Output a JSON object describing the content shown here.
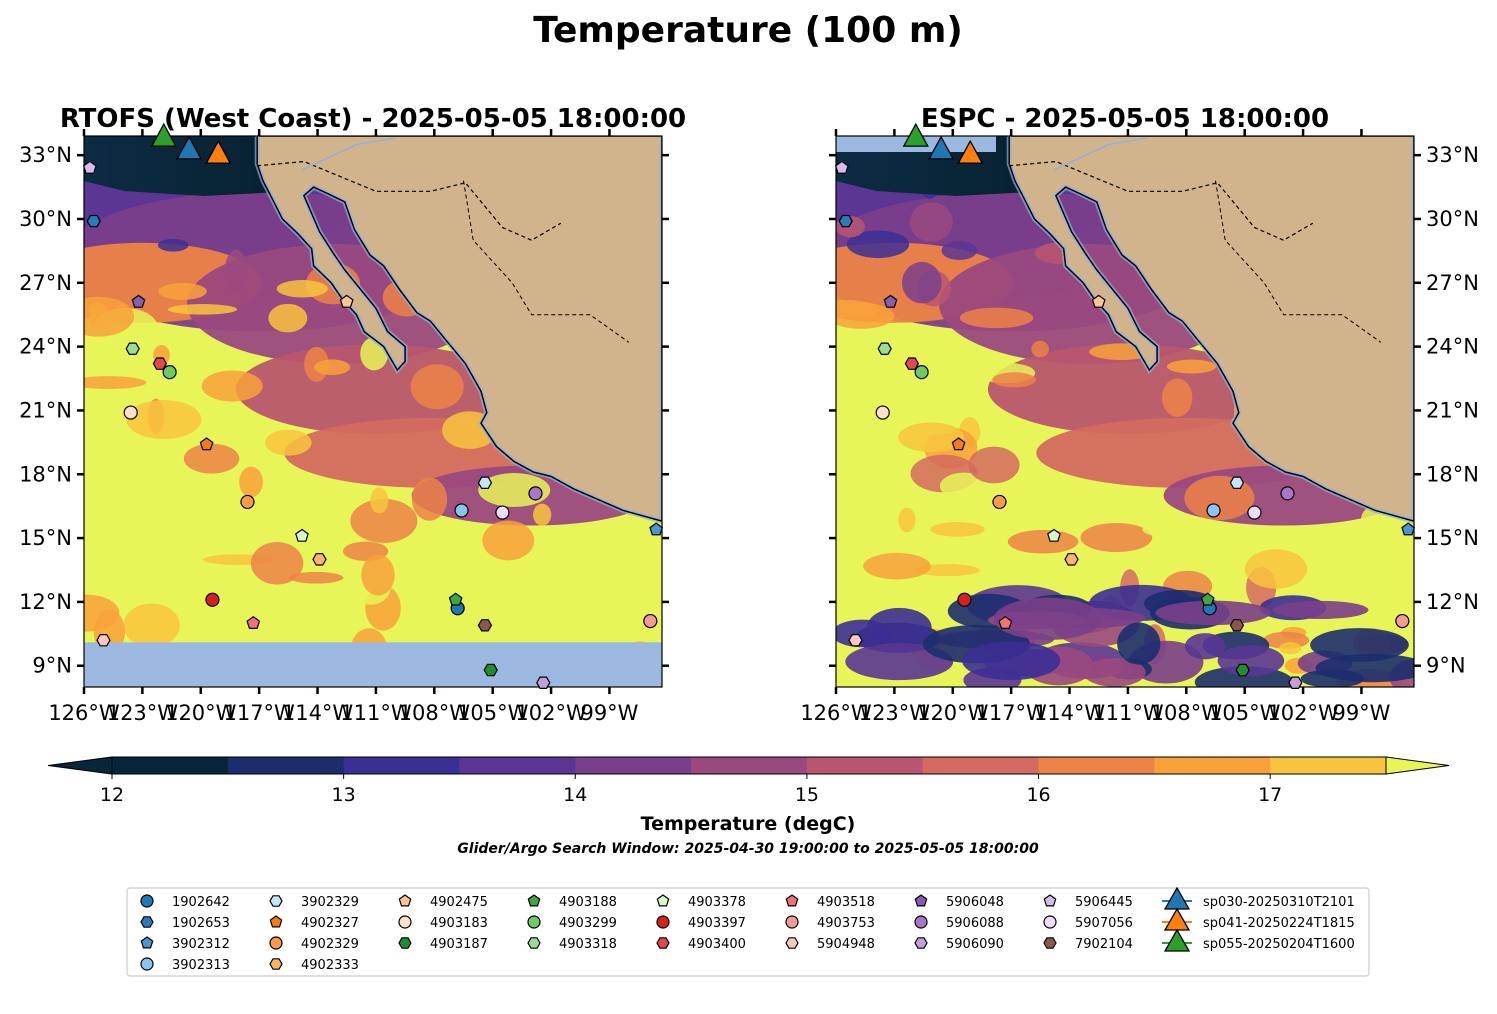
{
  "figure": {
    "title": "Temperature (100 m)",
    "search_window": "Glider/Argo Search Window: 2025-04-30 19:00:00 to 2025-05-05 18:00:00"
  },
  "panels": [
    {
      "id": "rtofs",
      "title": "RTOFS (West Coast) - 2025-05-05 18:00:00"
    },
    {
      "id": "espc",
      "title": "ESPC - 2025-05-05 18:00:00"
    }
  ],
  "axes": {
    "lon_ticks": [
      "126°W",
      "123°W",
      "120°W",
      "117°W",
      "114°W",
      "111°W",
      "108°W",
      "105°W",
      "102°W",
      "99°W"
    ],
    "lat_ticks": [
      "33°N",
      "30°N",
      "27°N",
      "24°N",
      "21°N",
      "18°N",
      "15°N",
      "12°N",
      "9°N"
    ]
  },
  "colorbar": {
    "label": "Temperature (degC)",
    "ticks": [
      "12",
      "13",
      "14",
      "15",
      "16",
      "17"
    ],
    "colors": [
      "#08263a",
      "#1c2d6e",
      "#3c2f94",
      "#5a3694",
      "#7a3f8a",
      "#9a4980",
      "#b9566f",
      "#d46a60",
      "#ec8346",
      "#f8a13b",
      "#f9c43d",
      "#e8f558"
    ]
  },
  "legend": [
    {
      "label": "1902642",
      "marker": "circle",
      "color": "#1f77b4"
    },
    {
      "label": "1902653",
      "marker": "hexagon",
      "color": "#2b7bb9"
    },
    {
      "label": "3902312",
      "marker": "pentagon",
      "color": "#4a96d2"
    },
    {
      "label": "3902313",
      "marker": "circle",
      "color": "#8dc4ef"
    },
    {
      "label": "3902329",
      "marker": "hexagon",
      "color": "#c3e6fb"
    },
    {
      "label": "4902327",
      "marker": "pentagon",
      "color": "#f57c0f"
    },
    {
      "label": "4902329",
      "marker": "circle",
      "color": "#fb9a4a"
    },
    {
      "label": "4902333",
      "marker": "hexagon",
      "color": "#fdb467"
    },
    {
      "label": "4902475",
      "marker": "pentagon",
      "color": "#fdc496"
    },
    {
      "label": "4903183",
      "marker": "circle",
      "color": "#fde2c6"
    },
    {
      "label": "4903187",
      "marker": "hexagon",
      "color": "#1e8f2e"
    },
    {
      "label": "4903188",
      "marker": "pentagon",
      "color": "#3ea83e"
    },
    {
      "label": "4903299",
      "marker": "circle",
      "color": "#6ccb64"
    },
    {
      "label": "4903318",
      "marker": "hexagon",
      "color": "#9bde90"
    },
    {
      "label": "4903378",
      "marker": "pentagon",
      "color": "#d7f7cc"
    },
    {
      "label": "4903397",
      "marker": "circle",
      "color": "#d42020"
    },
    {
      "label": "4903400",
      "marker": "hexagon",
      "color": "#e14848"
    },
    {
      "label": "4903518",
      "marker": "pentagon",
      "color": "#f07474"
    },
    {
      "label": "4903753",
      "marker": "circle",
      "color": "#f59a94"
    },
    {
      "label": "5904948",
      "marker": "hexagon",
      "color": "#fbc7c2"
    },
    {
      "label": "5906048",
      "marker": "pentagon",
      "color": "#8a5ab5"
    },
    {
      "label": "5906088",
      "marker": "circle",
      "color": "#a678c9"
    },
    {
      "label": "5906090",
      "marker": "hexagon",
      "color": "#c0a1db"
    },
    {
      "label": "5906445",
      "marker": "pentagon",
      "color": "#d5bdf0"
    },
    {
      "label": "5907056",
      "marker": "circle",
      "color": "#eedcfb"
    },
    {
      "label": "7902104",
      "marker": "hexagon",
      "color": "#8c564b"
    },
    {
      "label": "sp030-20250310T2101",
      "marker": "triangle",
      "color": "#1f77b4"
    },
    {
      "label": "sp041-20250224T1815",
      "marker": "triangle",
      "color": "#ff7f0e"
    },
    {
      "label": "sp055-20250204T1600",
      "marker": "triangle",
      "color": "#2ca02c"
    }
  ],
  "floats": [
    {
      "id": "1902642",
      "lon": -106.8,
      "lat": 11.7
    },
    {
      "id": "1902653",
      "lon": -125.5,
      "lat": 29.9
    },
    {
      "id": "3902312",
      "lon": -96.6,
      "lat": 15.4
    },
    {
      "id": "3902313",
      "lon": -106.6,
      "lat": 16.3
    },
    {
      "id": "3902329",
      "lon": -105.4,
      "lat": 17.6
    },
    {
      "id": "4902327",
      "lon": -119.7,
      "lat": 19.4
    },
    {
      "id": "4902329",
      "lon": -117.6,
      "lat": 16.7
    },
    {
      "id": "4902333",
      "lon": -113.9,
      "lat": 14.0
    },
    {
      "id": "4902475",
      "lon": -112.5,
      "lat": 26.1
    },
    {
      "id": "4903183",
      "lon": -123.6,
      "lat": 20.9
    },
    {
      "id": "4903187",
      "lon": -105.1,
      "lat": 8.8
    },
    {
      "id": "4903188",
      "lon": -106.9,
      "lat": 12.1
    },
    {
      "id": "4903299",
      "lon": -121.6,
      "lat": 22.8
    },
    {
      "id": "4903318",
      "lon": -123.5,
      "lat": 23.9
    },
    {
      "id": "4903378",
      "lon": -114.8,
      "lat": 15.1
    },
    {
      "id": "4903397",
      "lon": -119.4,
      "lat": 12.1
    },
    {
      "id": "4903400",
      "lon": -122.1,
      "lat": 23.2
    },
    {
      "id": "4903518",
      "lon": -117.3,
      "lat": 11.0
    },
    {
      "id": "4903753",
      "lon": -96.9,
      "lat": 11.1
    },
    {
      "id": "5904948",
      "lon": -125.0,
      "lat": 10.2
    },
    {
      "id": "5906048",
      "lon": -123.2,
      "lat": 26.1
    },
    {
      "id": "5906088",
      "lon": -102.8,
      "lat": 17.1
    },
    {
      "id": "5906090",
      "lon": -102.4,
      "lat": 8.2
    },
    {
      "id": "5906445",
      "lon": -125.7,
      "lat": 32.4
    },
    {
      "id": "5907056",
      "lon": -104.5,
      "lat": 16.2
    },
    {
      "id": "7902104",
      "lon": -105.4,
      "lat": 10.9
    }
  ],
  "gliders": [
    {
      "id": "sp030-20250310T2101",
      "lon": -120.6,
      "lat": 33.2
    },
    {
      "id": "sp041-20250224T1815",
      "lon": -119.1,
      "lat": 33.0
    },
    {
      "id": "sp055-20250204T1600",
      "lon": -121.9,
      "lat": 33.8
    }
  ]
}
